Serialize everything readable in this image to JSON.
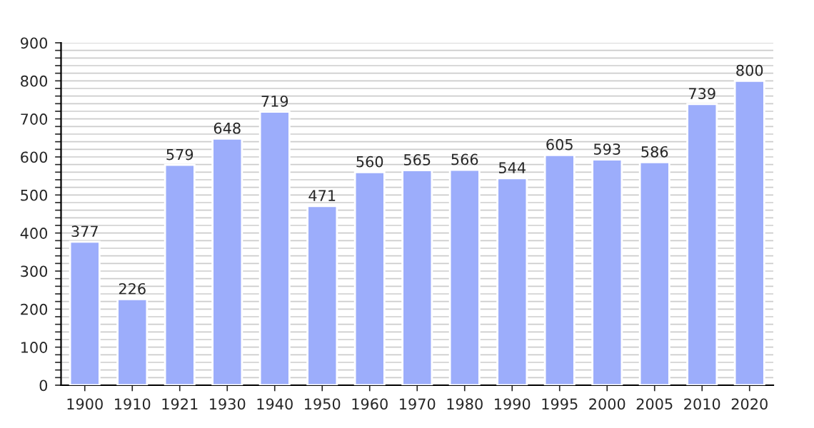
{
  "chart_data": {
    "type": "bar",
    "categories": [
      "1900",
      "1910",
      "1921",
      "1930",
      "1940",
      "1950",
      "1960",
      "1970",
      "1980",
      "1990",
      "1995",
      "2000",
      "2005",
      "2010",
      "2020"
    ],
    "values": [
      377,
      226,
      579,
      648,
      719,
      471,
      560,
      565,
      566,
      544,
      605,
      593,
      586,
      739,
      800
    ],
    "color": "#9cadfb",
    "data_labels": true,
    "ylim": [
      0,
      900
    ],
    "yticks": [
      0,
      {
        "value": 20,
        "label": null
      },
      {
        "value": 40,
        "label": null
      },
      {
        "value": 60,
        "label": null
      },
      {
        "value": 80,
        "label": null
      },
      100,
      {
        "value": 120,
        "label": null
      },
      {
        "value": 140,
        "label": null
      },
      {
        "value": 160,
        "label": null
      },
      {
        "value": 180,
        "label": null
      },
      200,
      {
        "value": 220,
        "label": null
      },
      {
        "value": 240,
        "label": null
      },
      {
        "value": 260,
        "label": null
      },
      {
        "value": 280,
        "label": null
      },
      300,
      {
        "value": 320,
        "label": null
      },
      {
        "value": 340,
        "label": null
      },
      {
        "value": 360,
        "label": null
      },
      {
        "value": 380,
        "label": null
      },
      400,
      {
        "value": 420,
        "label": null
      },
      {
        "value": 440,
        "label": null
      },
      {
        "value": 460,
        "label": null
      },
      {
        "value": 480,
        "label": null
      },
      500,
      {
        "value": 520,
        "label": null
      },
      {
        "value": 540,
        "label": null
      },
      {
        "value": 560,
        "label": null
      },
      {
        "value": 580,
        "label": null
      },
      600,
      {
        "value": 620,
        "label": null
      },
      {
        "value": 640,
        "label": null
      },
      {
        "value": 660,
        "label": null
      },
      {
        "value": 680,
        "label": null
      },
      700,
      {
        "value": 720,
        "label": null
      },
      {
        "value": 740,
        "label": null
      },
      {
        "value": 760,
        "label": null
      },
      {
        "value": 780,
        "label": null
      },
      800,
      {
        "value": 820,
        "label": null
      },
      {
        "value": 840,
        "label": null
      },
      {
        "value": 860,
        "label": null
      },
      {
        "value": 880,
        "label": null
      },
      900
    ],
    "grid": "y"
  }
}
